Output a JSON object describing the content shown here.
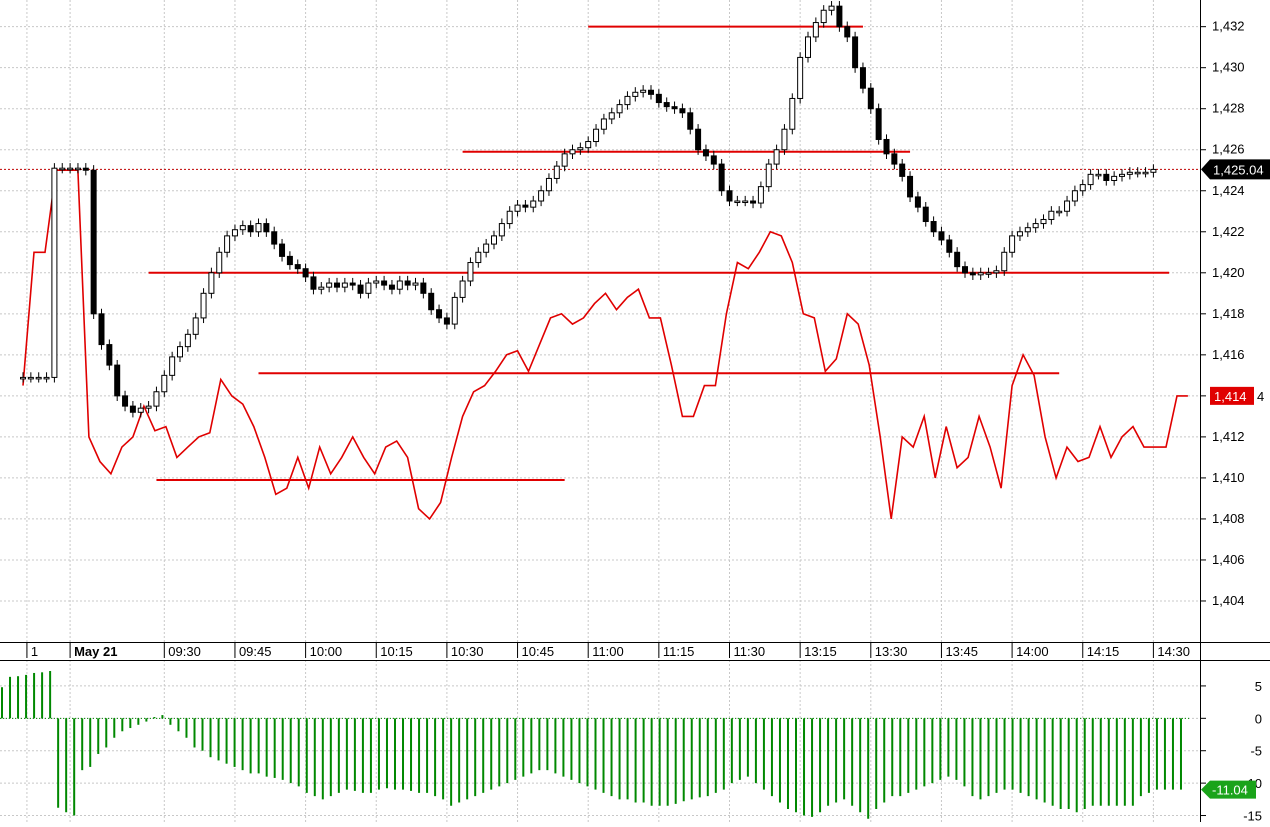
{
  "chart_data": [
    {
      "type": "candlestick",
      "panel": "price",
      "ylim": [
        1402,
        1433.3
      ],
      "y_ticks": [
        1404,
        1406,
        1408,
        1410,
        1412,
        1414,
        1416,
        1418,
        1420,
        1422,
        1424,
        1426,
        1428,
        1430,
        1432
      ],
      "y_tick_labels": [
        "1,404",
        "1,406",
        "1,408",
        "1,410",
        "1,412",
        "1,414",
        "1,416",
        "1,418",
        "1,420",
        "1,422",
        "1,424",
        "1,426",
        "1,428",
        "1,430",
        "1,432"
      ],
      "x_labels": [
        {
          "label": "1",
          "bar": 0.5
        },
        {
          "label": "May 21",
          "bar": 6,
          "bold": true
        },
        {
          "label": "09:30",
          "bar": 18
        },
        {
          "label": "09:45",
          "bar": 27
        },
        {
          "label": "10:00",
          "bar": 36
        },
        {
          "label": "10:15",
          "bar": 45
        },
        {
          "label": "10:30",
          "bar": 54
        },
        {
          "label": "10:45",
          "bar": 63
        },
        {
          "label": "11:00",
          "bar": 72
        },
        {
          "label": "11:15",
          "bar": 81
        },
        {
          "label": "11:30",
          "bar": 90
        },
        {
          "label": "13:15",
          "bar": 99
        },
        {
          "label": "13:30",
          "bar": 108
        },
        {
          "label": "13:45",
          "bar": 117
        },
        {
          "label": "14:00",
          "bar": 126
        },
        {
          "label": "14:15",
          "bar": 135
        },
        {
          "label": "14:30",
          "bar": 144
        }
      ],
      "grid": true,
      "last_price_label": "1,425.04",
      "close": [
        1414.9,
        1414.9,
        1414.9,
        1414.9,
        1425.1,
        1425.1,
        1425.1,
        1425.1,
        1425.0,
        1418.0,
        1416.5,
        1415.5,
        1414.0,
        1413.5,
        1413.2,
        1413.4,
        1413.5,
        1414.2,
        1415.0,
        1415.9,
        1416.4,
        1417.0,
        1417.8,
        1419.0,
        1420.0,
        1421.0,
        1421.8,
        1422.1,
        1422.3,
        1422.0,
        1422.4,
        1422.0,
        1421.4,
        1420.8,
        1420.4,
        1420.2,
        1419.8,
        1419.2,
        1419.3,
        1419.5,
        1419.3,
        1419.5,
        1419.4,
        1419.0,
        1419.5,
        1419.6,
        1419.4,
        1419.2,
        1419.6,
        1419.4,
        1419.5,
        1419.0,
        1418.2,
        1417.8,
        1417.5,
        1418.8,
        1419.6,
        1420.5,
        1421.0,
        1421.4,
        1421.8,
        1422.4,
        1423.0,
        1423.3,
        1423.2,
        1423.5,
        1424.0,
        1424.6,
        1425.2,
        1425.8,
        1426.0,
        1426.1,
        1426.4,
        1427.0,
        1427.5,
        1427.8,
        1428.2,
        1428.6,
        1428.8,
        1428.9,
        1428.7,
        1428.3,
        1428.1,
        1428.0,
        1427.8,
        1427.0,
        1426.0,
        1425.7,
        1425.3,
        1424.0,
        1423.5,
        1423.5,
        1423.5,
        1423.4,
        1424.2,
        1425.3,
        1426.0,
        1427.0,
        1428.5,
        1430.5,
        1431.5,
        1432.2,
        1432.8,
        1433.0,
        1432.0,
        1431.5,
        1430.0,
        1429.0,
        1428.0,
        1426.5,
        1425.8,
        1425.3,
        1424.7,
        1423.7,
        1423.2,
        1422.5,
        1422.0,
        1421.6,
        1421.0,
        1420.3,
        1420.0,
        1419.9,
        1420.0,
        1420.0,
        1420.1,
        1421.0,
        1421.8,
        1422.0,
        1422.2,
        1422.4,
        1422.6,
        1423.0,
        1423.0,
        1423.5,
        1424.0,
        1424.3,
        1424.8,
        1424.8,
        1424.5,
        1424.7,
        1424.8,
        1424.9,
        1424.9,
        1424.9,
        1425.04
      ],
      "series": [
        {
          "name": "",
          "color": "#e00000",
          "current_label": "1,414",
          "values": [
            1414.5,
            1421.0,
            1421.0,
            1425.0,
            1425.0,
            1425.0,
            1412.0,
            1410.8,
            1410.2,
            1411.5,
            1412.0,
            1413.5,
            1412.3,
            1412.5,
            1411.0,
            1411.5,
            1412.0,
            1412.2,
            1414.8,
            1414.0,
            1413.6,
            1412.5,
            1411.0,
            1409.2,
            1409.5,
            1411.0,
            1409.5,
            1411.5,
            1410.2,
            1411.0,
            1412.0,
            1411.0,
            1410.2,
            1411.5,
            1411.8,
            1411.0,
            1408.5,
            1408.0,
            1408.8,
            1411.0,
            1413.0,
            1414.2,
            1414.5,
            1415.2,
            1416.0,
            1416.2,
            1415.2,
            1416.5,
            1417.8,
            1418.0,
            1417.5,
            1417.8,
            1418.5,
            1419.0,
            1418.2,
            1418.8,
            1419.2,
            1417.8,
            1417.8,
            1415.5,
            1413.0,
            1413.0,
            1414.5,
            1414.5,
            1418.0,
            1420.5,
            1420.2,
            1421.0,
            1422.0,
            1421.8,
            1420.5,
            1418.0,
            1417.8,
            1415.2,
            1415.8,
            1418.0,
            1417.5,
            1415.5,
            1412.0,
            1408.0,
            1412.0,
            1411.5,
            1413.0,
            1410.0,
            1412.5,
            1410.5,
            1411.0,
            1413.0,
            1411.5,
            1409.5,
            1414.5,
            1416.0,
            1415.0,
            1412.0,
            1410.0,
            1411.5,
            1410.8,
            1411.0,
            1412.5,
            1411.0,
            1412.0,
            1412.5,
            1411.5,
            1411.5,
            1411.5,
            1414.0,
            1414.0
          ]
        }
      ],
      "horizontal_lines": [
        {
          "y": 1432.0,
          "from_bar": 72,
          "to_bar": 107
        },
        {
          "y": 1425.9,
          "from_bar": 56,
          "to_bar": 113
        },
        {
          "y": 1420.0,
          "from_bar": 16,
          "to_bar": 146
        },
        {
          "y": 1415.1,
          "from_bar": 30,
          "to_bar": 132
        },
        {
          "y": 1409.9,
          "from_bar": 17,
          "to_bar": 69
        }
      ],
      "reference_line": {
        "y": 1425.04,
        "style": "dotted"
      }
    },
    {
      "type": "bar",
      "panel": "indicator",
      "ylim": [
        -16,
        9
      ],
      "y_ticks": [
        -15,
        -10,
        -5,
        0,
        5
      ],
      "y_tick_labels": [
        "-15",
        "-10",
        "-5",
        "0",
        "5"
      ],
      "current_label": "-11.04",
      "color": "#008800",
      "values": [
        4.8,
        6.4,
        6.5,
        6.7,
        7.0,
        7.1,
        7.3,
        -13.8,
        -14.5,
        -15.0,
        -8.0,
        -7.5,
        -5.5,
        -4.5,
        -3.0,
        -2.0,
        -1.5,
        -1.0,
        -0.5,
        0.2,
        0.5,
        -1.0,
        -2.0,
        -3.0,
        -4.5,
        -5.0,
        -6.0,
        -6.5,
        -7.0,
        -7.5,
        -8.0,
        -8.5,
        -8.5,
        -9.0,
        -9.2,
        -9.5,
        -10.0,
        -10.5,
        -11.5,
        -12.0,
        -12.5,
        -12.0,
        -11.5,
        -11.0,
        -11.2,
        -11.5,
        -11.5,
        -11.0,
        -10.8,
        -11.0,
        -11.0,
        -11.2,
        -11.5,
        -11.5,
        -12.0,
        -12.5,
        -13.5,
        -13.0,
        -12.5,
        -12.0,
        -11.5,
        -11.0,
        -10.5,
        -10.0,
        -9.5,
        -9.0,
        -8.5,
        -8.0,
        -8.0,
        -8.5,
        -9.0,
        -9.5,
        -10.0,
        -10.5,
        -11.0,
        -11.5,
        -12.0,
        -12.5,
        -12.5,
        -13.0,
        -13.0,
        -13.5,
        -13.5,
        -13.5,
        -13.2,
        -12.8,
        -12.5,
        -12.2,
        -12.0,
        -11.5,
        -11.0,
        -10.0,
        -9.5,
        -9.0,
        -10.0,
        -11.0,
        -12.0,
        -13.0,
        -14.0,
        -14.5,
        -15.0,
        -15.2,
        -14.5,
        -13.5,
        -13.0,
        -12.5,
        -13.5,
        -14.5,
        -15.5,
        -14.0,
        -13.0,
        -12.0,
        -12.0,
        -11.5,
        -11.0,
        -10.5,
        -10.0,
        -9.5,
        -9.0,
        -9.5,
        -10.5,
        -12.0,
        -12.5,
        -12.0,
        -11.5,
        -11.0,
        -11.0,
        -11.5,
        -12.0,
        -12.5,
        -13.0,
        -13.5,
        -14.0,
        -14.0,
        -14.5,
        -14.0,
        -13.5,
        -13.5,
        -13.5,
        -13.5,
        -13.5,
        -13.5,
        -12.0,
        -11.5,
        -11.0,
        -11.0,
        -11.0,
        -11.0
      ]
    }
  ]
}
